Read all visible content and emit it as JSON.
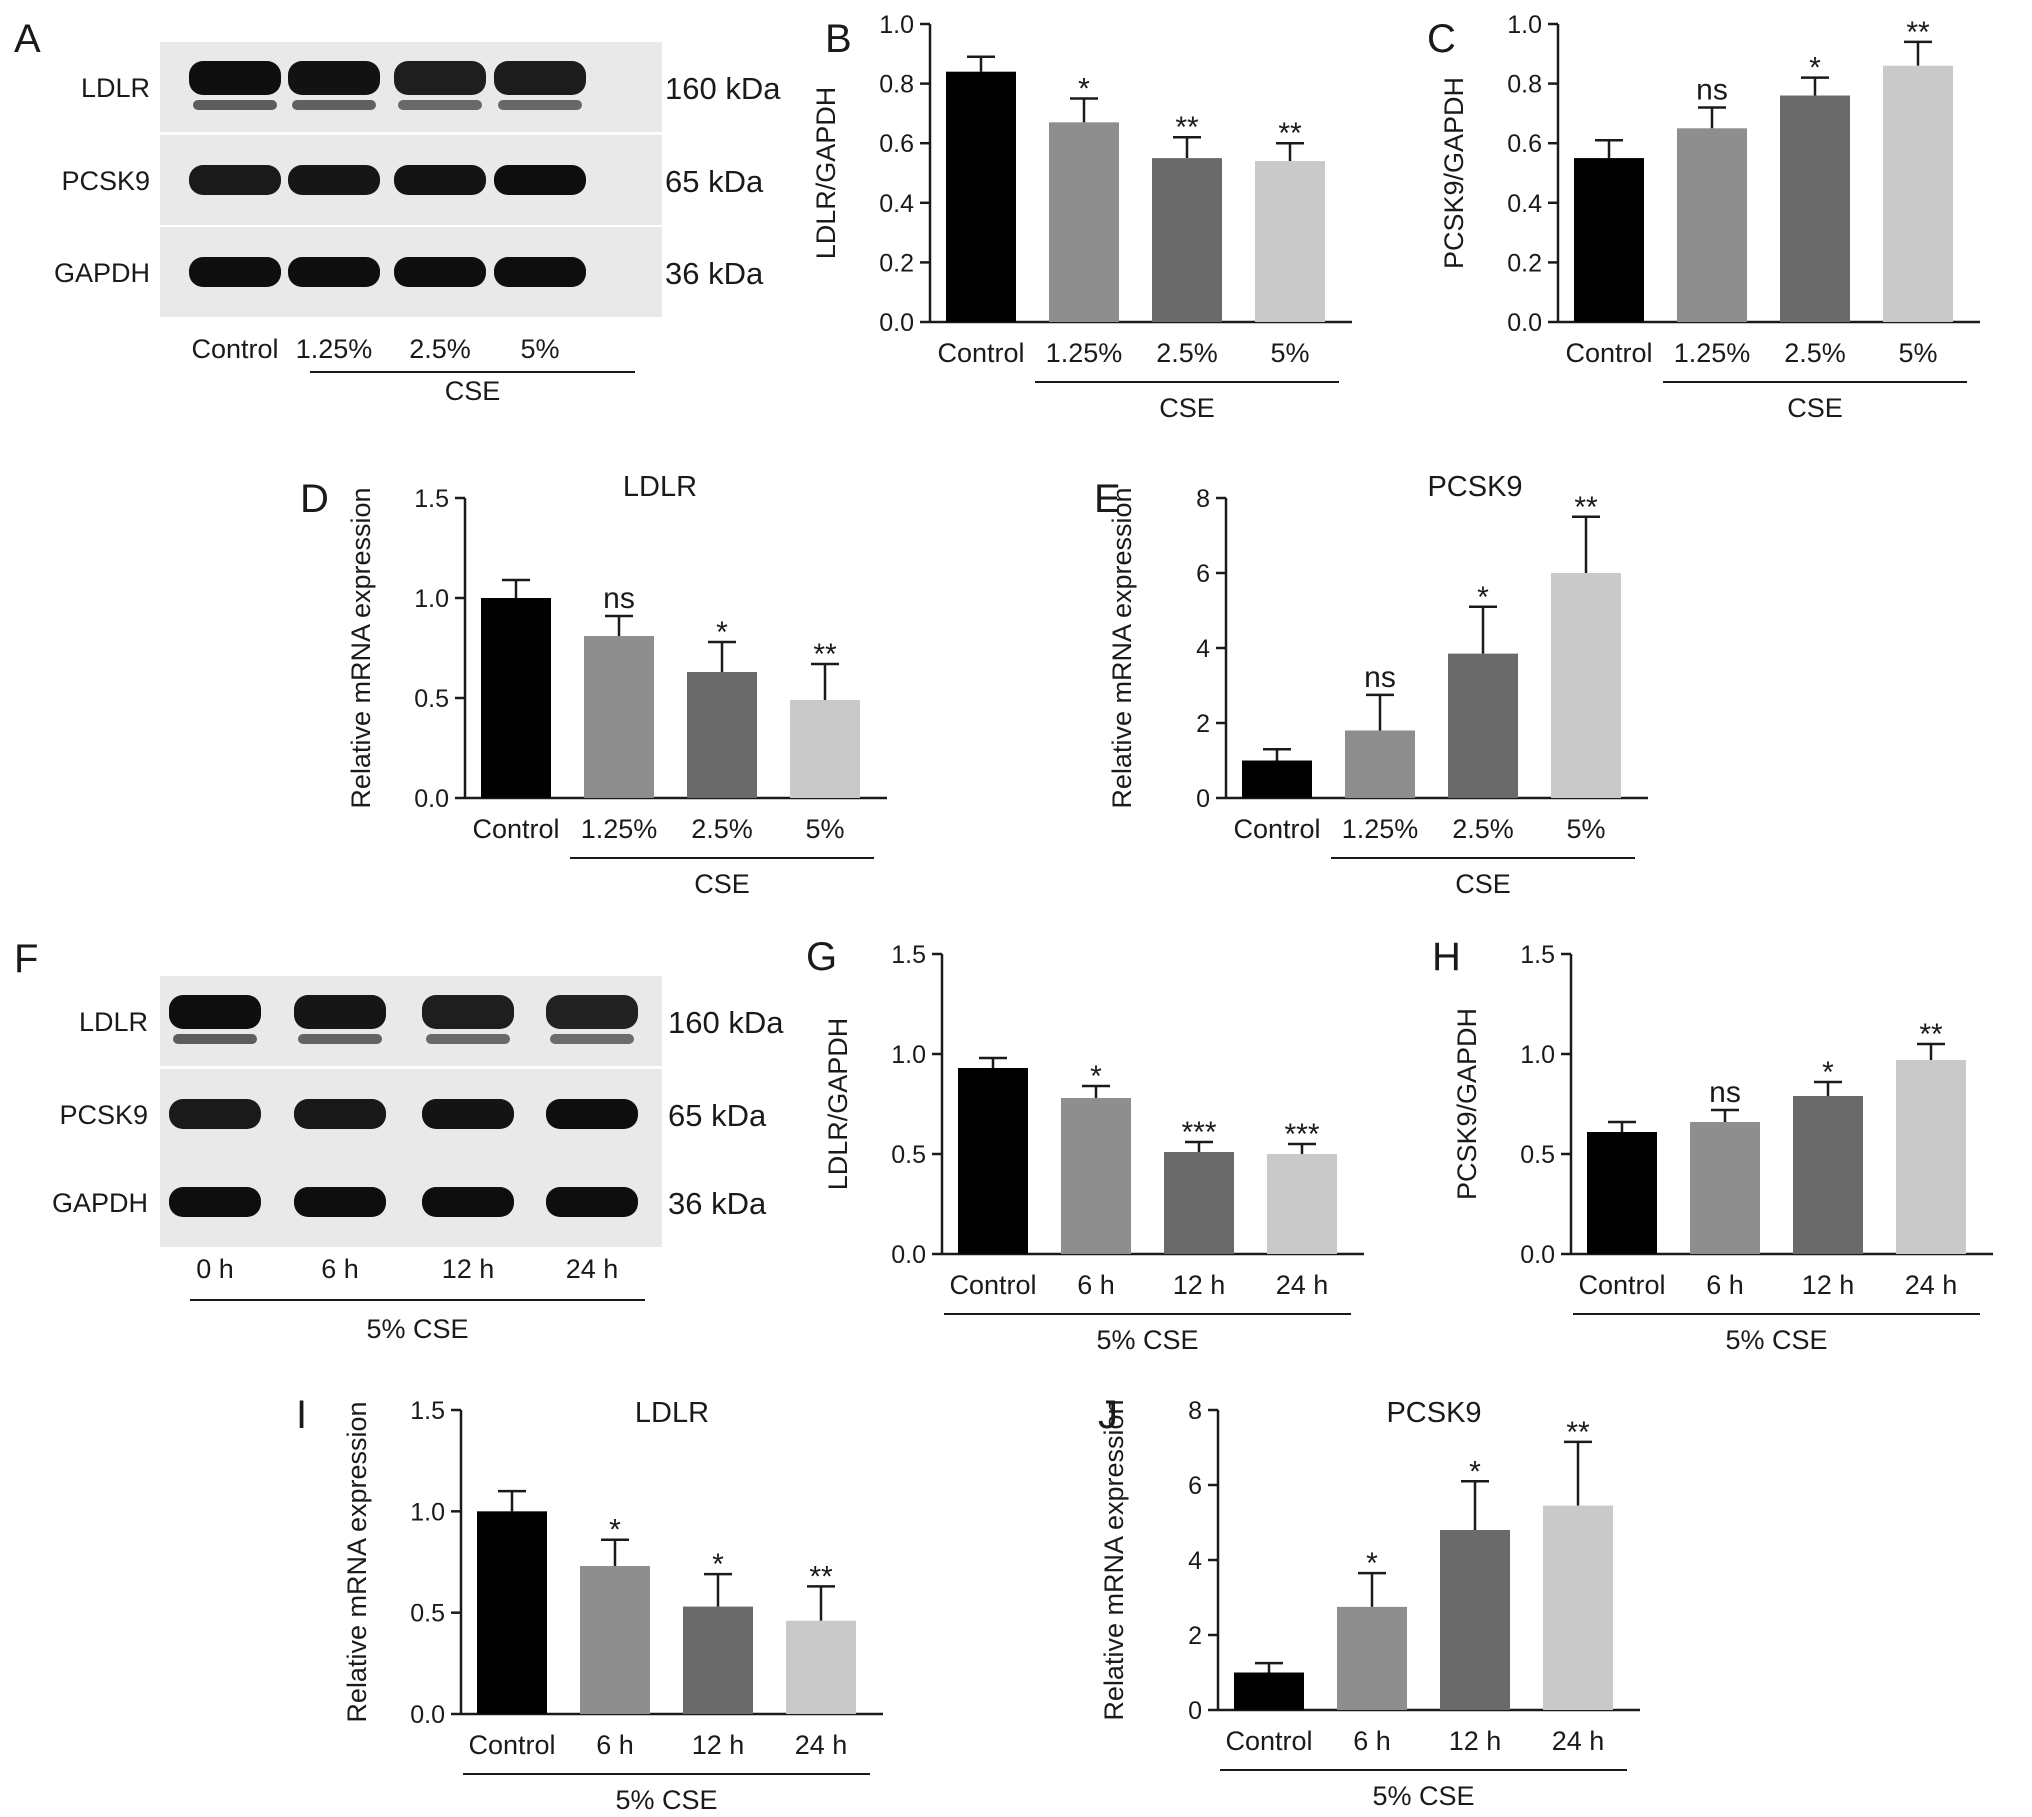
{
  "colors": {
    "bars": [
      "#000000",
      "#8e8e8e",
      "#6a6a6a",
      "#c9c9c9"
    ],
    "ink": "#1a1a1a"
  },
  "blots": [
    {
      "panel_label": "A",
      "rows": [
        {
          "name": "LDLR",
          "size": "160 kDa",
          "intensities": [
            0.95,
            0.9,
            0.75,
            0.78
          ],
          "double_band": true
        },
        {
          "name": "PCSK9",
          "size": "65 kDa",
          "intensities": [
            0.8,
            0.85,
            0.88,
            0.95
          ],
          "double_band": false
        },
        {
          "name": "GAPDH",
          "size": "36 kDa",
          "intensities": [
            0.95,
            0.95,
            0.95,
            0.95
          ],
          "double_band": false
        }
      ],
      "lanes": [
        "Control",
        "1.25%",
        "2.5%",
        "5%"
      ],
      "group_label": "CSE",
      "group_from": 1
    },
    {
      "panel_label": "F",
      "rows": [
        {
          "name": "LDLR",
          "size": "160 kDa",
          "intensities": [
            0.95,
            0.85,
            0.75,
            0.7
          ],
          "double_band": true
        },
        {
          "name": "PCSK9",
          "size": "65 kDa",
          "intensities": [
            0.8,
            0.82,
            0.88,
            0.95
          ],
          "double_band": false
        },
        {
          "name": "GAPDH",
          "size": "36 kDa",
          "intensities": [
            0.95,
            0.95,
            0.95,
            0.95
          ],
          "double_band": false
        }
      ],
      "lanes": [
        "0 h",
        "6 h",
        "12 h",
        "24 h"
      ],
      "group_label": "5% CSE",
      "group_from": 0
    }
  ],
  "chart_data": [
    {
      "panel_label": "B",
      "type": "bar",
      "title": "",
      "ylabel": "LDLR/GAPDH",
      "categories": [
        "Control",
        "1.25%",
        "2.5%",
        "5%"
      ],
      "values": [
        0.84,
        0.67,
        0.55,
        0.54
      ],
      "errors": [
        0.05,
        0.08,
        0.07,
        0.06
      ],
      "significance": [
        "",
        "*",
        "**",
        "**"
      ],
      "ylim": [
        0,
        1.0
      ],
      "yticks": [
        "0.0",
        "0.2",
        "0.4",
        "0.6",
        "0.8",
        "1.0"
      ],
      "group_label": "CSE",
      "group_from": 1
    },
    {
      "panel_label": "C",
      "type": "bar",
      "title": "",
      "ylabel": "PCSK9/GAPDH",
      "categories": [
        "Control",
        "1.25%",
        "2.5%",
        "5%"
      ],
      "values": [
        0.55,
        0.65,
        0.76,
        0.86
      ],
      "errors": [
        0.06,
        0.07,
        0.06,
        0.08
      ],
      "significance": [
        "",
        "ns",
        "*",
        "**"
      ],
      "ylim": [
        0,
        1.0
      ],
      "yticks": [
        "0.0",
        "0.2",
        "0.4",
        "0.6",
        "0.8",
        "1.0"
      ],
      "group_label": "CSE",
      "group_from": 1
    },
    {
      "panel_label": "D",
      "type": "bar",
      "title": "LDLR",
      "ylabel": "Relative mRNA expression",
      "categories": [
        "Control",
        "1.25%",
        "2.5%",
        "5%"
      ],
      "values": [
        1.0,
        0.81,
        0.63,
        0.49
      ],
      "errors": [
        0.09,
        0.1,
        0.15,
        0.18
      ],
      "significance": [
        "",
        "ns",
        "*",
        "**"
      ],
      "ylim": [
        0,
        1.5
      ],
      "yticks": [
        "0.0",
        "0.5",
        "1.0",
        "1.5"
      ],
      "group_label": "CSE",
      "group_from": 1
    },
    {
      "panel_label": "E",
      "type": "bar",
      "title": "PCSK9",
      "ylabel": "Relative mRNA expression",
      "categories": [
        "Control",
        "1.25%",
        "2.5%",
        "5%"
      ],
      "values": [
        1.0,
        1.8,
        3.85,
        6.0
      ],
      "errors": [
        0.3,
        0.95,
        1.25,
        1.5
      ],
      "significance": [
        "",
        "ns",
        "*",
        "**"
      ],
      "ylim": [
        0,
        8
      ],
      "yticks": [
        "0",
        "2",
        "4",
        "6",
        "8"
      ],
      "group_label": "CSE",
      "group_from": 1
    },
    {
      "panel_label": "G",
      "type": "bar",
      "title": "",
      "ylabel": "LDLR/GAPDH",
      "categories": [
        "Control",
        "6 h",
        "12 h",
        "24 h"
      ],
      "values": [
        0.93,
        0.78,
        0.51,
        0.5
      ],
      "errors": [
        0.05,
        0.06,
        0.05,
        0.05
      ],
      "significance": [
        "",
        "*",
        "***",
        "***"
      ],
      "ylim": [
        0,
        1.5
      ],
      "yticks": [
        "0.0",
        "0.5",
        "1.0",
        "1.5"
      ],
      "group_label": "5% CSE",
      "group_from": 0
    },
    {
      "panel_label": "H",
      "type": "bar",
      "title": "",
      "ylabel": "PCSK9/GAPDH",
      "categories": [
        "Control",
        "6 h",
        "12 h",
        "24 h"
      ],
      "values": [
        0.61,
        0.66,
        0.79,
        0.97
      ],
      "errors": [
        0.05,
        0.06,
        0.07,
        0.08
      ],
      "significance": [
        "",
        "ns",
        "*",
        "**"
      ],
      "ylim": [
        0,
        1.5
      ],
      "yticks": [
        "0.0",
        "0.5",
        "1.0",
        "1.5"
      ],
      "group_label": "5% CSE",
      "group_from": 0
    },
    {
      "panel_label": "I",
      "type": "bar",
      "title": "LDLR",
      "ylabel": "Relative mRNA expression",
      "categories": [
        "Control",
        "6 h",
        "12 h",
        "24 h"
      ],
      "values": [
        1.0,
        0.73,
        0.53,
        0.46
      ],
      "errors": [
        0.1,
        0.13,
        0.16,
        0.17
      ],
      "significance": [
        "",
        "*",
        "*",
        "**"
      ],
      "ylim": [
        0,
        1.5
      ],
      "yticks": [
        "0.0",
        "0.5",
        "1.0",
        "1.5"
      ],
      "group_label": "5% CSE",
      "group_from": 0
    },
    {
      "panel_label": "J",
      "type": "bar",
      "title": "PCSK9",
      "ylabel": "Relative mRNA expression",
      "categories": [
        "Control",
        "6 h",
        "12 h",
        "24 h"
      ],
      "values": [
        1.0,
        2.75,
        4.8,
        5.45
      ],
      "errors": [
        0.25,
        0.9,
        1.3,
        1.7
      ],
      "significance": [
        "",
        "*",
        "*",
        "**"
      ],
      "ylim": [
        0,
        8
      ],
      "yticks": [
        "0",
        "2",
        "4",
        "6",
        "8"
      ],
      "group_label": "5% CSE",
      "group_from": 0
    }
  ]
}
